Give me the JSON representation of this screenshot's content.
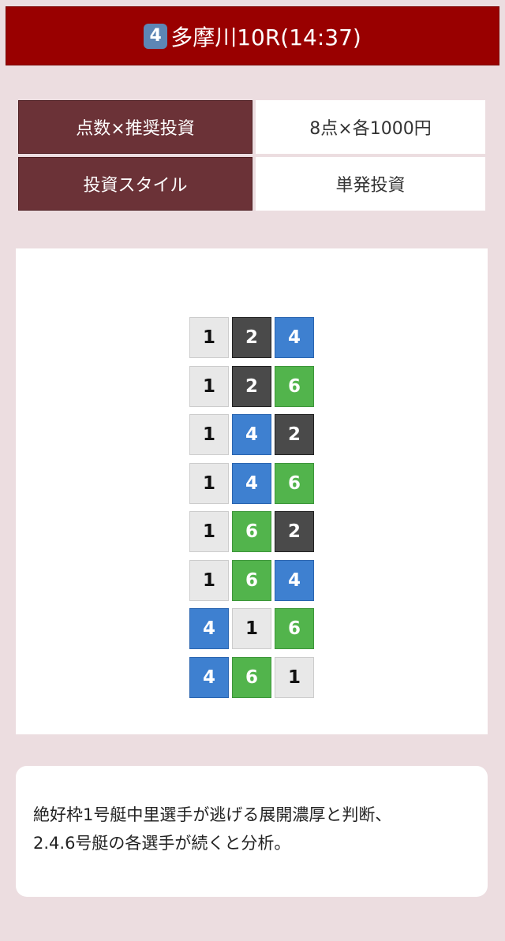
{
  "header": {
    "badge": "4",
    "title": "多摩川10R(14:37)"
  },
  "info": [
    {
      "label": "点数×推奨投資",
      "value": "8点×各1000円"
    },
    {
      "label": "投資スタイル",
      "value": "単発投資"
    }
  ],
  "boat_colors": {
    "1": "#e8e8e8",
    "2": "#4a4a4a",
    "4": "#3e80d0",
    "6": "#52b44c"
  },
  "combinations": [
    [
      "1",
      "2",
      "4"
    ],
    [
      "1",
      "2",
      "6"
    ],
    [
      "1",
      "4",
      "2"
    ],
    [
      "1",
      "4",
      "6"
    ],
    [
      "1",
      "6",
      "2"
    ],
    [
      "1",
      "6",
      "4"
    ],
    [
      "4",
      "1",
      "6"
    ],
    [
      "4",
      "6",
      "1"
    ]
  ],
  "comment": {
    "line1": "絶好枠1号艇中里選手が逃げる展開濃厚と判断、",
    "line2": "2.4.6号艇の各選手が続くと分析。"
  }
}
